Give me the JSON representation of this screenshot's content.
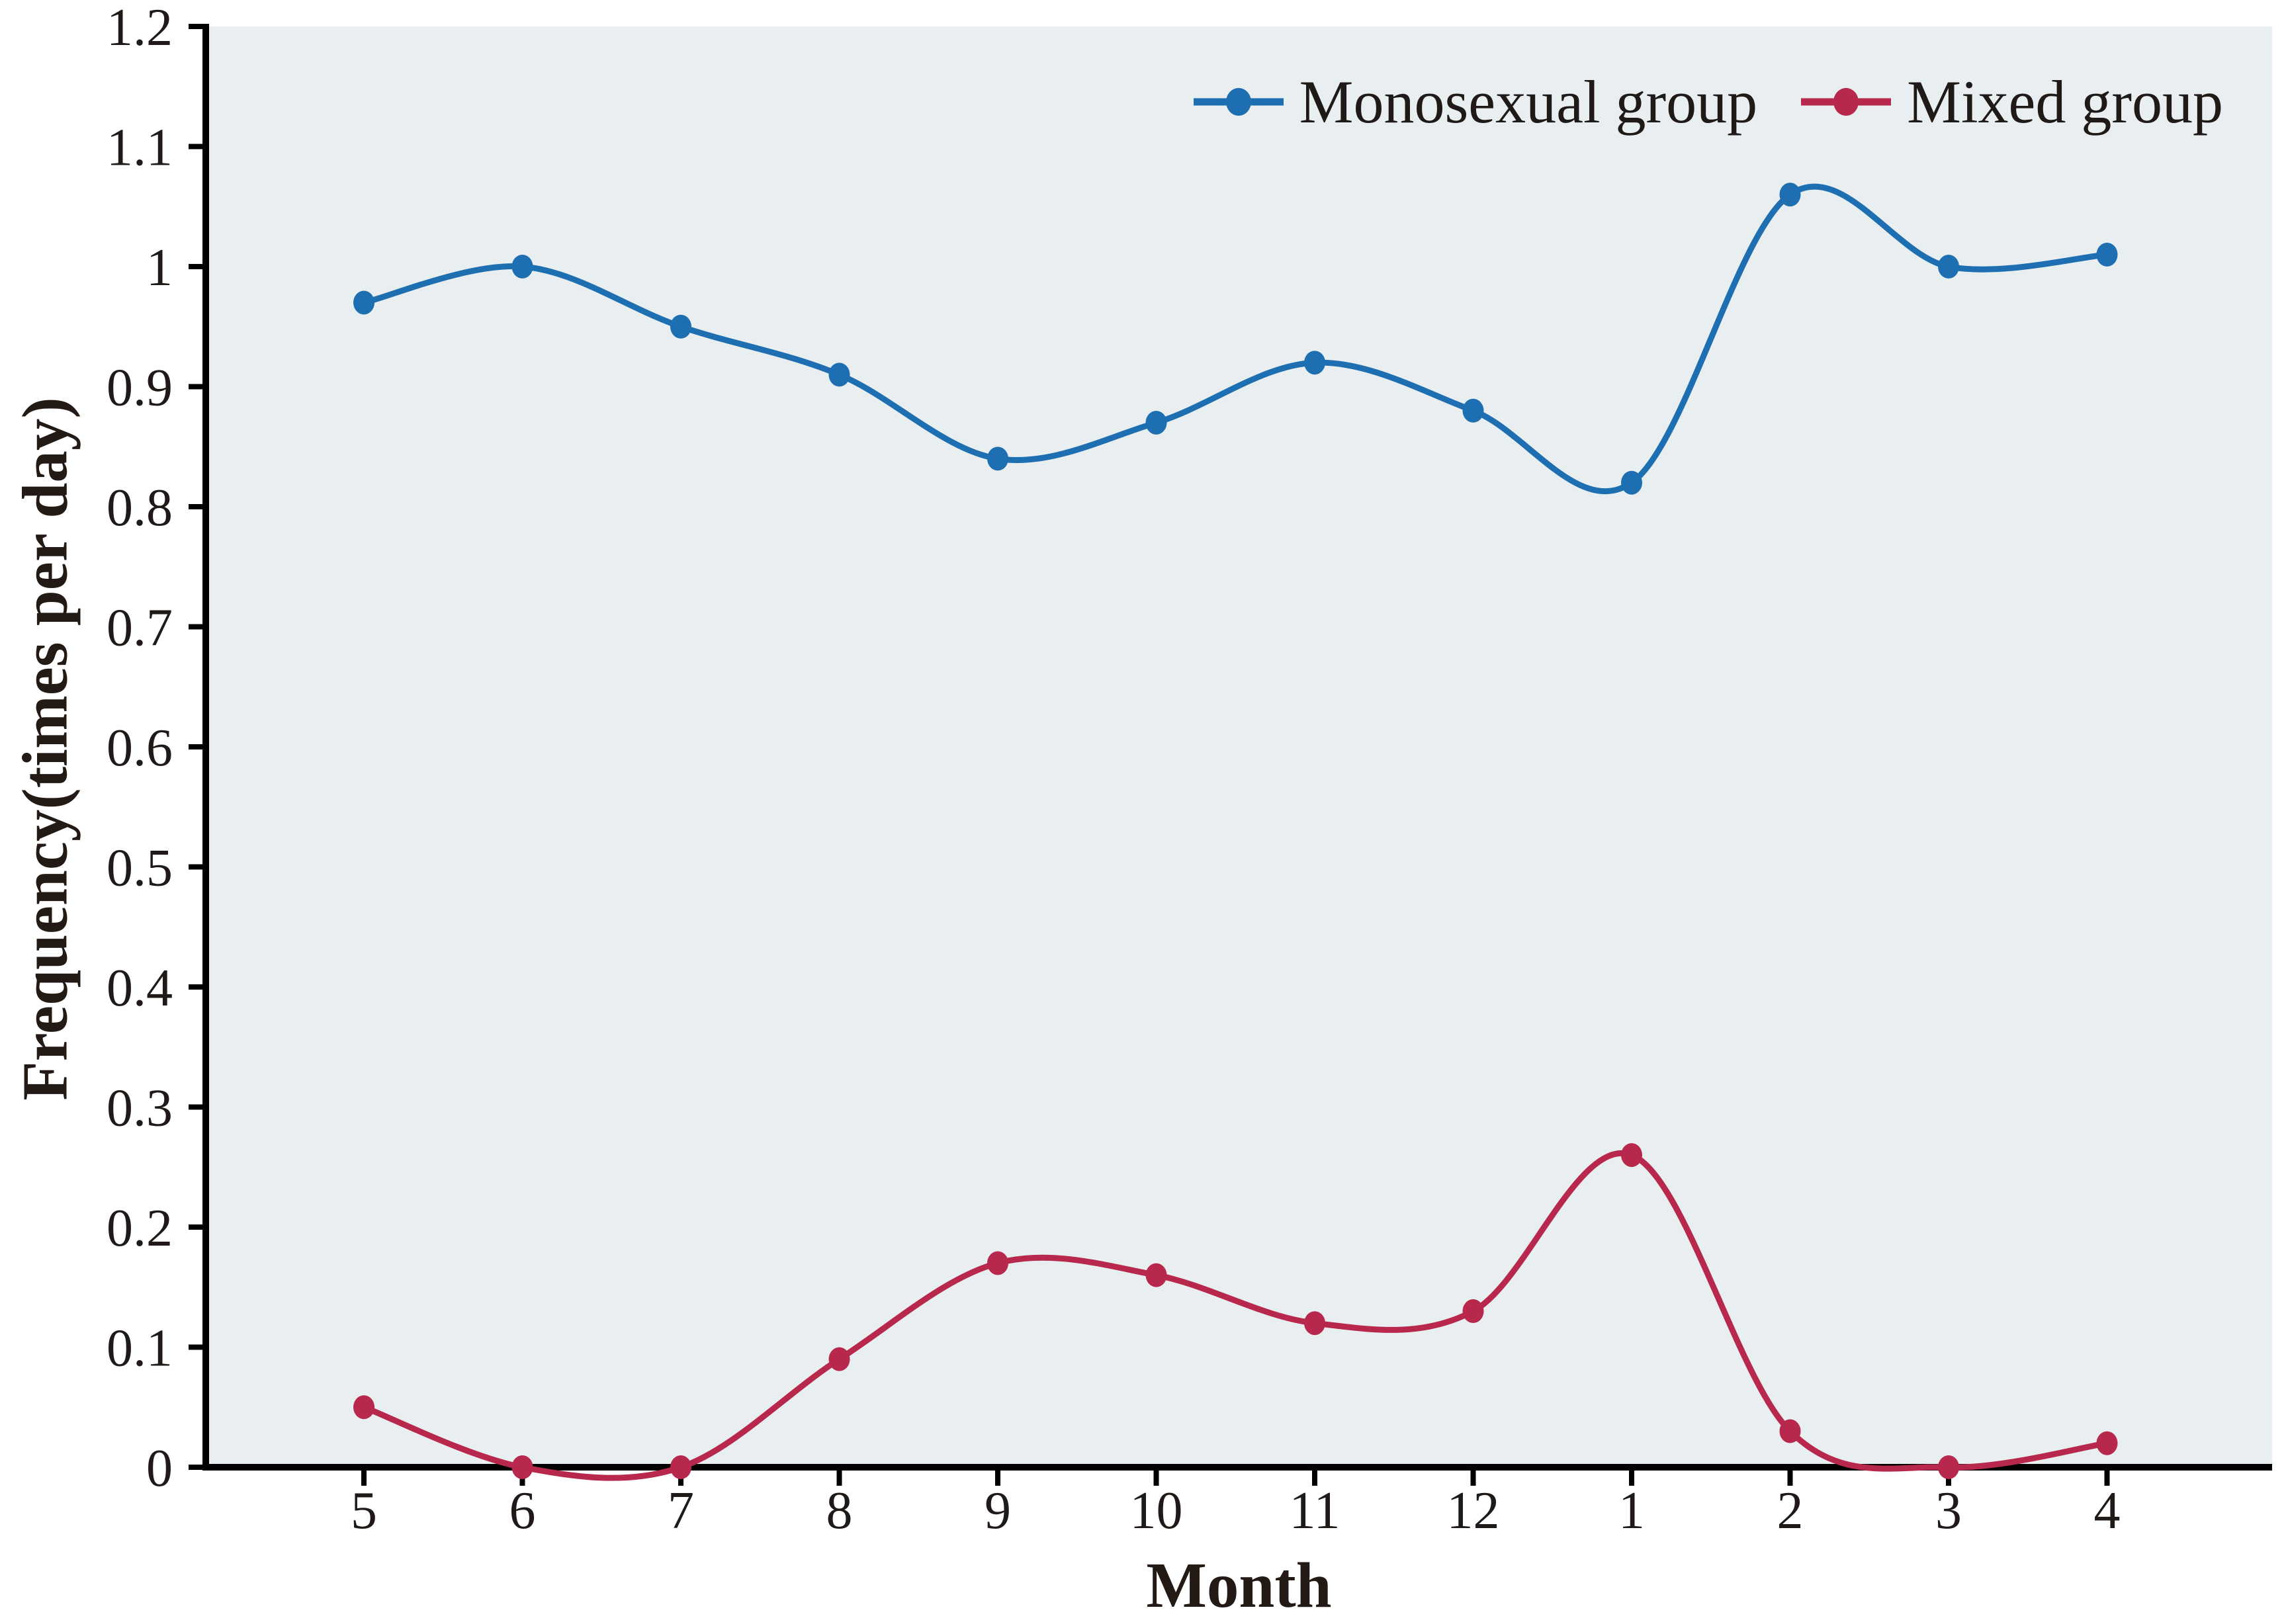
{
  "chart_data": {
    "type": "line",
    "title": "",
    "xlabel": "Month",
    "ylabel": "Frequency(times per day)",
    "categories": [
      "5",
      "6",
      "7",
      "8",
      "9",
      "10",
      "11",
      "12",
      "1",
      "2",
      "3",
      "4"
    ],
    "series": [
      {
        "name": "Monosexual group",
        "color": "#1e6fb1",
        "values": [
          0.97,
          1.0,
          0.95,
          0.91,
          0.84,
          0.87,
          0.92,
          0.88,
          0.82,
          1.06,
          1.0,
          1.01
        ]
      },
      {
        "name": "Mixed group",
        "color": "#b8284d",
        "values": [
          0.05,
          0.0,
          0.0,
          0.09,
          0.17,
          0.16,
          0.12,
          0.13,
          0.26,
          0.03,
          0.0,
          0.02
        ]
      }
    ],
    "ylim": [
      0,
      1.2
    ],
    "y_tick_step": 0.1,
    "y_tick_labels": [
      "0",
      "0.1",
      "0.2",
      "0.3",
      "0.4",
      "0.5",
      "0.6",
      "0.7",
      "0.8",
      "0.9",
      "1",
      "1.1",
      "1.2"
    ],
    "grid": false,
    "line_shape": "smooth",
    "marker_shape": "ellipse",
    "legend_position": "top-right",
    "plot_bg_color": "#e9eef0",
    "axis_color": "#000000",
    "text_color": "#1f1a17"
  }
}
